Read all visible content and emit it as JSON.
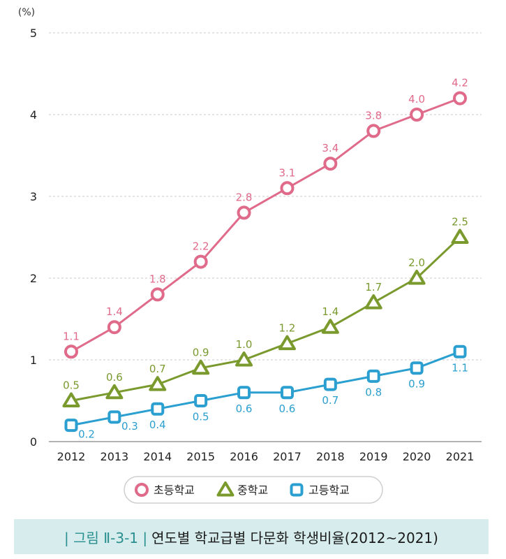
{
  "chart_data": {
    "type": "line",
    "title": "연도별 학교급별 다문화 학생비율(2012~2021)",
    "figure_label": "| 그림 Ⅱ-3-1 |",
    "ylabel": "(%)",
    "xlabel": "",
    "ylim": [
      0,
      5
    ],
    "yticks": [
      "0",
      "1",
      "2",
      "3",
      "4",
      "5"
    ],
    "categories": [
      "2012",
      "2013",
      "2014",
      "2015",
      "2016",
      "2017",
      "2018",
      "2019",
      "2020",
      "2021"
    ],
    "grid": true,
    "legend_position": "bottom",
    "series": [
      {
        "name": "초등학교",
        "marker": "circle",
        "color": "#e06a8a",
        "label_position": "above",
        "values": [
          1.1,
          1.4,
          1.8,
          2.2,
          2.8,
          3.1,
          3.4,
          3.8,
          4.0,
          4.2
        ],
        "labels": [
          "1.1",
          "1.4",
          "1.8",
          "2.2",
          "2.8",
          "3.1",
          "3.4",
          "3.8",
          "4.0",
          "4.2"
        ]
      },
      {
        "name": "중학교",
        "marker": "triangle",
        "color": "#7a9a2e",
        "label_position": "above",
        "values": [
          0.5,
          0.6,
          0.7,
          0.9,
          1.0,
          1.2,
          1.4,
          1.7,
          2.0,
          2.5
        ],
        "labels": [
          "0.5",
          "0.6",
          "0.7",
          "0.9",
          "1.0",
          "1.2",
          "1.4",
          "1.7",
          "2.0",
          "2.5"
        ]
      },
      {
        "name": "고등학교",
        "marker": "square",
        "color": "#2a9fd0",
        "label_position": "below",
        "values": [
          0.2,
          0.3,
          0.4,
          0.5,
          0.6,
          0.6,
          0.7,
          0.8,
          0.9,
          1.1
        ],
        "labels": [
          "0.2",
          "0.3",
          "0.4",
          "0.5",
          "0.6",
          "0.6",
          "0.7",
          "0.8",
          "0.9",
          "1.1"
        ]
      }
    ]
  }
}
